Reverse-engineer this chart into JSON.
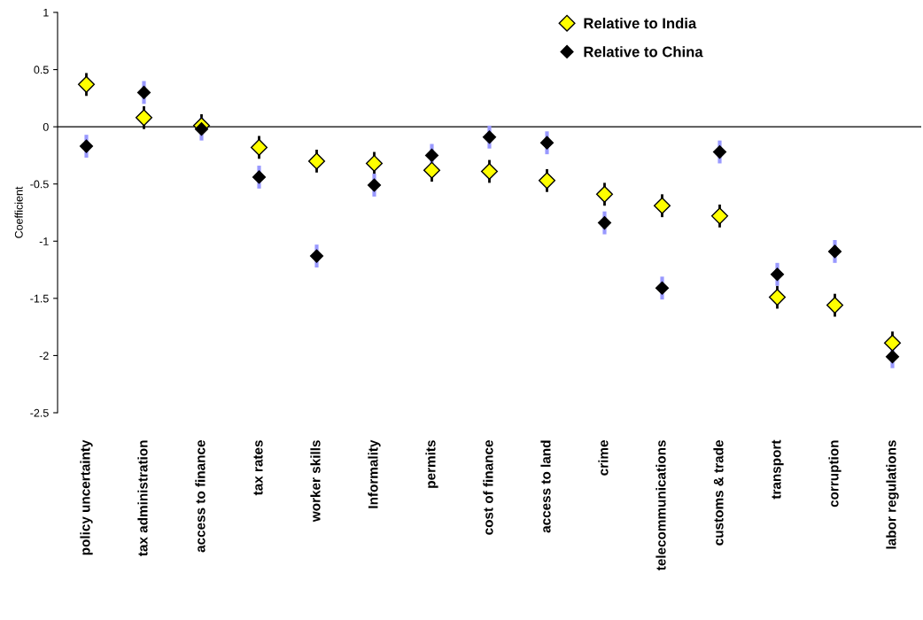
{
  "chart_data": {
    "type": "scatter",
    "ylabel": "Coefficient",
    "categories": [
      "policy uncertainty",
      "tax administration",
      "access to finance",
      "tax rates",
      "worker skills",
      "Informality",
      "permits",
      "cost of finance",
      "access to land",
      "crime",
      "telecommunications",
      "customs & trade",
      "transport",
      "corruption",
      "labor regulations"
    ],
    "series": [
      {
        "name": "Relative to India",
        "color": "#ffff00",
        "marker": "diamond",
        "values": [
          0.37,
          0.08,
          0.01,
          -0.18,
          -0.3,
          -0.32,
          -0.38,
          -0.39,
          -0.47,
          -0.59,
          -0.69,
          -0.78,
          -1.49,
          -1.56,
          -1.89
        ],
        "errors": [
          0.1,
          0.1,
          0.1,
          0.1,
          0.1,
          0.1,
          0.1,
          0.1,
          0.1,
          0.1,
          0.1,
          0.1,
          0.1,
          0.1,
          0.1
        ]
      },
      {
        "name": "Relative to China",
        "color": "#000000",
        "marker": "diamond",
        "values": [
          -0.17,
          0.3,
          -0.02,
          -0.44,
          -1.13,
          -0.51,
          -0.25,
          -0.09,
          -0.14,
          -0.84,
          -1.41,
          -0.22,
          -1.29,
          -1.09,
          -2.01
        ],
        "errors": [
          0.1,
          0.1,
          0.1,
          0.1,
          0.1,
          0.1,
          0.1,
          0.1,
          0.1,
          0.1,
          0.1,
          0.1,
          0.1,
          0.1,
          0.1
        ]
      }
    ],
    "ylim": [
      -2.5,
      1
    ],
    "yticks": [
      -2.5,
      -2,
      -1.5,
      -1,
      -0.5,
      0,
      0.5,
      1
    ],
    "ref_lines": [
      {
        "axis": "y",
        "value": 0,
        "color": "#000000"
      }
    ],
    "legend": "top",
    "grid": false
  }
}
